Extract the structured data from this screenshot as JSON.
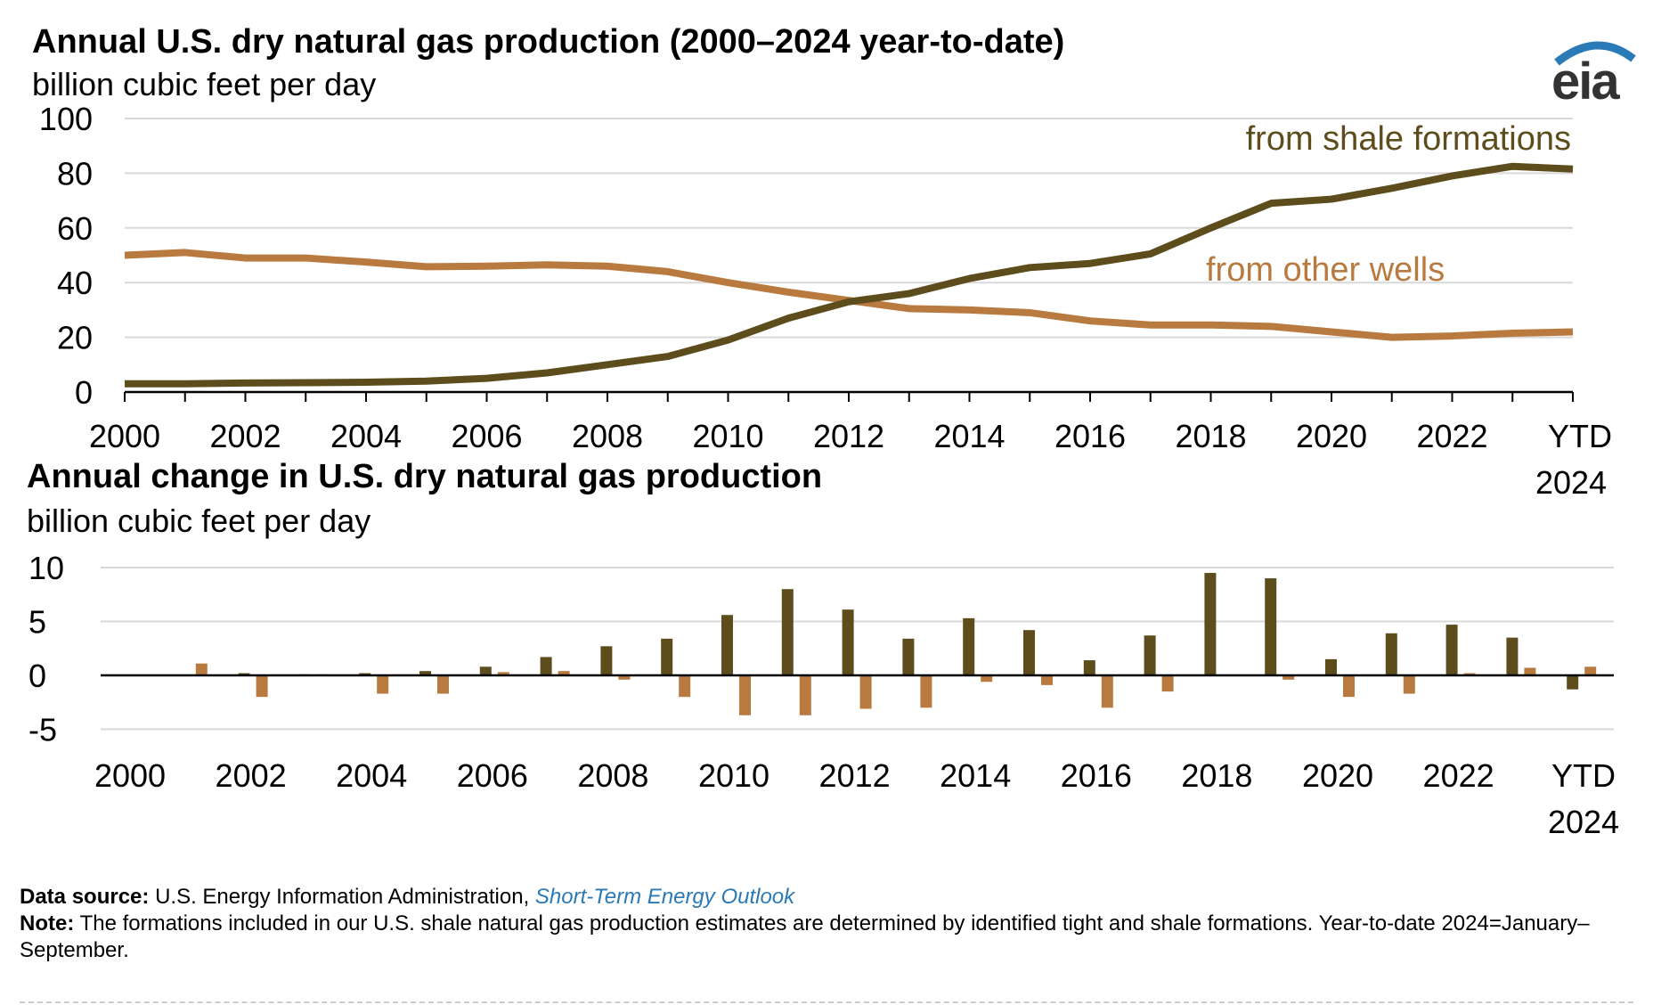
{
  "logo": "eia",
  "colors": {
    "shale": "#5e4d1c",
    "other": "#b97a3f",
    "grid": "#d9d9d9",
    "link": "#2a7ab8"
  },
  "chart_data": [
    {
      "type": "line",
      "title": "Annual U.S. dry natural gas production (2000–2024 year-to-date)",
      "ylabel": "billion cubic feet per day",
      "ylim": [
        0,
        100
      ],
      "yticks": [
        "0",
        "20",
        "40",
        "60",
        "80",
        "100"
      ],
      "categories": [
        "2000",
        "2001",
        "2002",
        "2003",
        "2004",
        "2005",
        "2006",
        "2007",
        "2008",
        "2009",
        "2010",
        "2011",
        "2012",
        "2013",
        "2014",
        "2015",
        "2016",
        "2017",
        "2018",
        "2019",
        "2020",
        "2021",
        "2022",
        "2023",
        "YTD 2024"
      ],
      "xtick_labels": [
        "2000",
        "2002",
        "2004",
        "2006",
        "2008",
        "2010",
        "2012",
        "2014",
        "2016",
        "2018",
        "2020",
        "2022",
        "YTD",
        "2024"
      ],
      "grid": true,
      "series": [
        {
          "name": "from shale formations",
          "values": [
            3,
            3,
            3.3,
            3.4,
            3.6,
            4,
            5,
            7,
            10,
            13,
            19,
            27,
            33,
            36,
            41.5,
            45.5,
            47,
            50.5,
            60,
            69,
            70.5,
            74.5,
            79,
            82.5,
            81.5
          ]
        },
        {
          "name": "from other wells",
          "values": [
            50,
            51,
            49,
            49,
            47.5,
            45.8,
            46,
            46.5,
            46,
            44,
            40,
            36.5,
            33.5,
            30.5,
            30,
            29,
            26,
            24.5,
            24.5,
            24,
            22,
            20,
            20.5,
            21.5,
            22
          ]
        }
      ]
    },
    {
      "type": "bar",
      "title": "Annual change in U.S. dry natural gas production",
      "ylabel": "billion cubic feet per day",
      "ylim": [
        -5,
        10
      ],
      "yticks": [
        "-5",
        "0",
        "5",
        "10"
      ],
      "categories": [
        "2000",
        "2001",
        "2002",
        "2003",
        "2004",
        "2005",
        "2006",
        "2007",
        "2008",
        "2009",
        "2010",
        "2011",
        "2012",
        "2013",
        "2014",
        "2015",
        "2016",
        "2017",
        "2018",
        "2019",
        "2020",
        "2021",
        "2022",
        "2023",
        "YTD 2024"
      ],
      "xtick_labels": [
        "2000",
        "2002",
        "2004",
        "2006",
        "2008",
        "2010",
        "2012",
        "2014",
        "2016",
        "2018",
        "2020",
        "2022",
        "YTD",
        "2024"
      ],
      "grid": true,
      "series": [
        {
          "name": "from shale formations",
          "values": [
            0,
            0,
            0.2,
            0.1,
            0.2,
            0.4,
            0.8,
            1.7,
            2.7,
            3.4,
            5.6,
            8,
            6.1,
            3.4,
            5.3,
            4.2,
            1.4,
            3.7,
            9.5,
            9,
            1.5,
            3.9,
            4.7,
            3.5,
            -1.3
          ]
        },
        {
          "name": "from other wells",
          "values": [
            0,
            1.1,
            -2,
            0.1,
            -1.7,
            -1.7,
            0.3,
            0.4,
            -0.4,
            -2,
            -3.7,
            -3.7,
            -3.1,
            -3,
            -0.6,
            -0.9,
            -3,
            -1.5,
            0,
            -0.4,
            -2,
            -1.7,
            0.2,
            0.7,
            0.8
          ]
        }
      ]
    }
  ],
  "footer": {
    "source_label": "Data source:",
    "source_text": "U.S. Energy Information Administration,",
    "source_link": "Short-Term Energy Outlook",
    "note_label": "Note:",
    "note_text": "The formations included in our U.S. shale natural gas production estimates are determined by identified tight and shale formations. Year-to-date 2024=January–September."
  }
}
